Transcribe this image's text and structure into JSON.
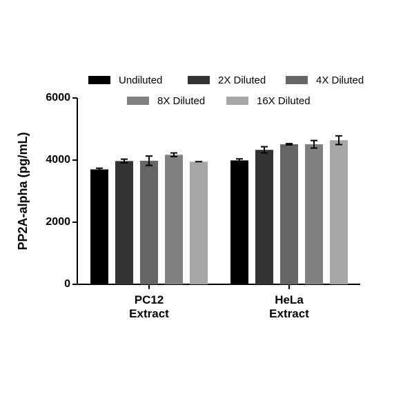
{
  "chart_data": {
    "type": "bar",
    "y_label": "PP2A-alpha (pg/mL)",
    "categories": [
      "PC12 Extract",
      "HeLa Extract"
    ],
    "series": [
      {
        "name": "Undiluted",
        "color": "#000000",
        "values": [
          3700,
          3990
        ],
        "errors": [
          40,
          50
        ]
      },
      {
        "name": "2X Diluted",
        "color": "#333333",
        "values": [
          3970,
          4330
        ],
        "errors": [
          60,
          100
        ]
      },
      {
        "name": "4X Diluted",
        "color": "#666666",
        "values": [
          3980,
          4510
        ],
        "errors": [
          150,
          20
        ]
      },
      {
        "name": "8X Diluted",
        "color": "#808080",
        "values": [
          4170,
          4510
        ],
        "errors": [
          60,
          120
        ]
      },
      {
        "name": "16X Diluted",
        "color": "#a6a6a6",
        "values": [
          3950,
          4640
        ],
        "errors": [
          0,
          140
        ]
      }
    ],
    "ylim": [
      0,
      6000
    ],
    "yticks": [
      0,
      2000,
      4000,
      6000
    ],
    "grid": false,
    "legend": "top"
  }
}
